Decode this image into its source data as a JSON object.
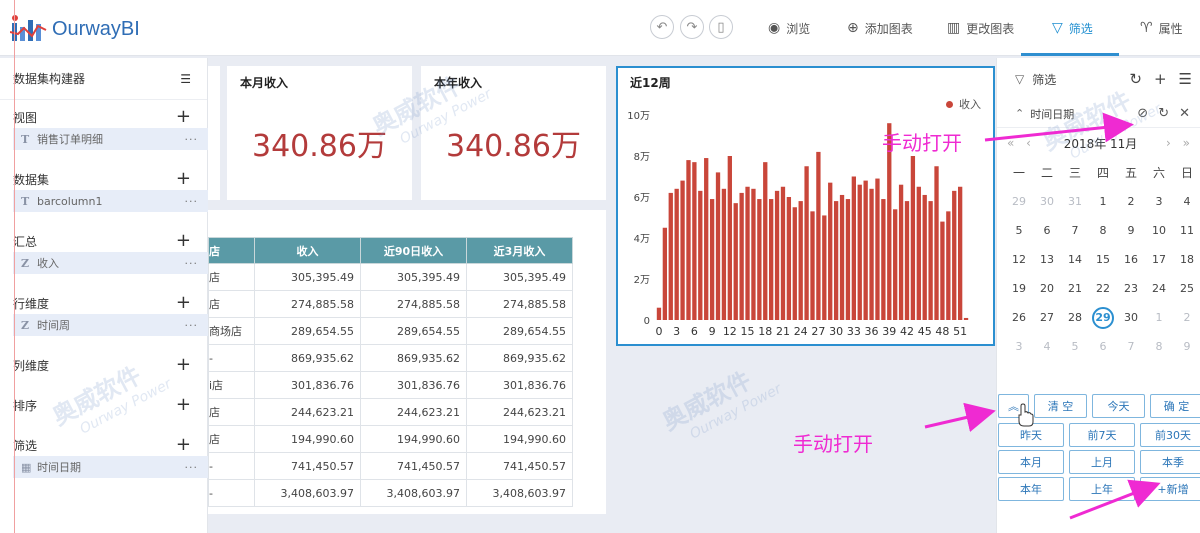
{
  "app": {
    "name": "OurwayBI"
  },
  "toolbar": {
    "browse": "浏览",
    "add_chart": "添加图表",
    "change_chart": "更改图表",
    "filter": "筛选",
    "properties": "属性"
  },
  "left_panel": {
    "title": "数据集构建器",
    "sections": {
      "view": {
        "label": "视图",
        "field": "销售订单明细"
      },
      "dataset": {
        "label": "数据集",
        "field": "barcolumn1"
      },
      "summary": {
        "label": "汇总",
        "field": "收入"
      },
      "row_dim": {
        "label": "行维度",
        "field": "时间周"
      },
      "col_dim": {
        "label": "列维度"
      },
      "sort": {
        "label": "排序"
      },
      "filter": {
        "label": "筛选",
        "field": "时间日期"
      }
    },
    "more": "···"
  },
  "kpis": [
    {
      "title": "本月收入",
      "value": "340.86万"
    },
    {
      "title": "本年收入",
      "value": "340.86万"
    }
  ],
  "table": {
    "columns": [
      "店",
      "收入",
      "近90日收入",
      "近3月收入"
    ],
    "rows": [
      [
        "店",
        "305,395.49",
        "305,395.49",
        "305,395.49"
      ],
      [
        "店",
        "274,885.58",
        "274,885.58",
        "274,885.58"
      ],
      [
        "商场店",
        "289,654.55",
        "289,654.55",
        "289,654.55"
      ],
      [
        "-",
        "869,935.62",
        "869,935.62",
        "869,935.62"
      ],
      [
        "i店",
        "301,836.76",
        "301,836.76",
        "301,836.76"
      ],
      [
        "店",
        "244,623.21",
        "244,623.21",
        "244,623.21"
      ],
      [
        "店",
        "194,990.60",
        "194,990.60",
        "194,990.60"
      ],
      [
        "-",
        "741,450.57",
        "741,450.57",
        "741,450.57"
      ],
      [
        "-",
        "3,408,603.97",
        "3,408,603.97",
        "3,408,603.97"
      ]
    ]
  },
  "chart_data": {
    "type": "bar",
    "title": "近12周",
    "legend": "收入",
    "legend_position": "top-right",
    "ylim": [
      0,
      100000
    ],
    "yticks": [
      "0",
      "2万",
      "4万",
      "6万",
      "8万",
      "10万"
    ],
    "xticks": [
      "0",
      "3",
      "6",
      "9",
      "12",
      "15",
      "18",
      "21",
      "24",
      "27",
      "30",
      "33",
      "36",
      "39",
      "42",
      "45",
      "48",
      "51"
    ],
    "color": "#c9463a",
    "x": [
      0,
      1,
      2,
      3,
      4,
      5,
      6,
      7,
      8,
      9,
      10,
      11,
      12,
      13,
      14,
      15,
      16,
      17,
      18,
      19,
      20,
      21,
      22,
      23,
      24,
      25,
      26,
      27,
      28,
      29,
      30,
      31,
      32,
      33,
      34,
      35,
      36,
      37,
      38,
      39,
      40,
      41,
      42,
      43,
      44,
      45,
      46,
      47,
      48,
      49,
      50,
      51,
      52
    ],
    "values": [
      6000,
      45000,
      62000,
      64000,
      68000,
      78000,
      77000,
      63000,
      79000,
      59000,
      72000,
      64000,
      80000,
      57000,
      62000,
      65000,
      64000,
      59000,
      77000,
      59000,
      63000,
      65000,
      60000,
      55000,
      58000,
      75000,
      53000,
      82000,
      51000,
      67000,
      58000,
      61000,
      59000,
      70000,
      66000,
      68000,
      64000,
      69000,
      59000,
      96000,
      54000,
      66000,
      58000,
      80000,
      65000,
      61000,
      58000,
      75000,
      48000,
      53000,
      63000,
      65000,
      1000
    ]
  },
  "filter_panel": {
    "title": "筛选",
    "field": "时间日期",
    "month_label": "2018年 11月",
    "weekdays": [
      "一",
      "二",
      "三",
      "四",
      "五",
      "六",
      "日"
    ],
    "days": [
      [
        "29",
        "30",
        "31",
        "1",
        "2",
        "3",
        "4"
      ],
      [
        "5",
        "6",
        "7",
        "8",
        "9",
        "10",
        "11"
      ],
      [
        "12",
        "13",
        "14",
        "15",
        "16",
        "17",
        "18"
      ],
      [
        "19",
        "20",
        "21",
        "22",
        "23",
        "24",
        "25"
      ],
      [
        "26",
        "27",
        "28",
        "29",
        "30",
        "1",
        "2"
      ],
      [
        "3",
        "4",
        "5",
        "6",
        "7",
        "8",
        "9"
      ]
    ],
    "buttons": {
      "collapse": "︽",
      "clear": "清 空",
      "today": "今天",
      "confirm": "确 定",
      "yesterday": "昨天",
      "last7": "前7天",
      "last30": "前30天",
      "this_month": "本月",
      "last_month": "上月",
      "this_quarter": "本季",
      "this_year": "本年",
      "last_year": "上年",
      "add_new": "+新增"
    }
  },
  "annotations": {
    "top": "手动打开",
    "bottom": "手动打开"
  },
  "watermark": {
    "cn": "奥威软件",
    "en": "Ourway Power"
  }
}
